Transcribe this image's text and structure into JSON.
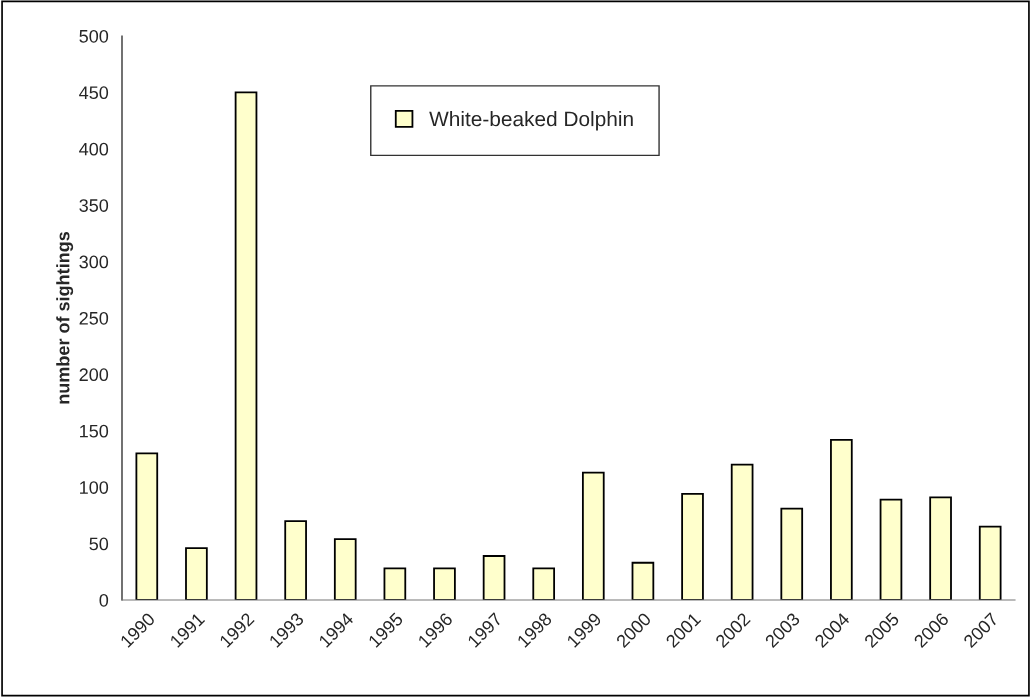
{
  "chart_data": {
    "type": "bar",
    "ylabel": "number of sightings",
    "categories": [
      "1990",
      "1991",
      "1992",
      "1993",
      "1994",
      "1995",
      "1996",
      "1997",
      "1998",
      "1999",
      "2000",
      "2001",
      "2002",
      "2003",
      "2004",
      "2005",
      "2006",
      "2007"
    ],
    "series": [
      {
        "name": "White-beaked Dolphin",
        "color": "#ffffcc",
        "values": [
          130,
          46,
          450,
          70,
          54,
          28,
          28,
          39,
          28,
          113,
          33,
          94,
          120,
          81,
          142,
          89,
          91,
          65
        ]
      }
    ],
    "ylim": [
      0,
      500
    ],
    "yticks": [
      0,
      50,
      100,
      150,
      200,
      250,
      300,
      350,
      400,
      450,
      500
    ],
    "grid": false,
    "legend": "top"
  }
}
